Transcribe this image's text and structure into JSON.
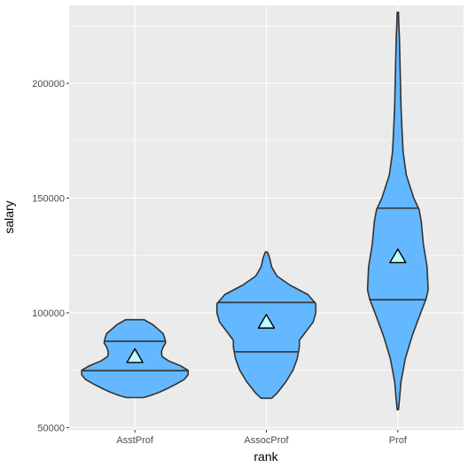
{
  "chart_data": {
    "type": "violin",
    "xlabel": "rank",
    "ylabel": "salary",
    "ylim": [
      49000,
      234000
    ],
    "y_ticks": [
      50000,
      100000,
      150000,
      200000
    ],
    "y_tick_labels": [
      "50000",
      "100000",
      "150000",
      "200000"
    ],
    "categories": [
      "AsstProf",
      "AssocProf",
      "Prof"
    ],
    "grid": true,
    "colors": {
      "panel": "#ebebeb",
      "grid": "#ffffff",
      "fill": "#63b8ff",
      "outline": "#333333",
      "mean_marker_fill": "#bfffff"
    },
    "violins": [
      {
        "category": "AsstProf",
        "q25": 74800,
        "q75": 87600,
        "mean": 80800,
        "profile": [
          [
            63100,
            0.16
          ],
          [
            64000,
            0.3
          ],
          [
            65500,
            0.47
          ],
          [
            67000,
            0.61
          ],
          [
            69000,
            0.78
          ],
          [
            71000,
            0.93
          ],
          [
            73000,
            1.0
          ],
          [
            75000,
            1.0
          ],
          [
            77000,
            0.85
          ],
          [
            79000,
            0.64
          ],
          [
            81000,
            0.51
          ],
          [
            83000,
            0.5
          ],
          [
            85000,
            0.53
          ],
          [
            87000,
            0.58
          ],
          [
            89000,
            0.56
          ],
          [
            91000,
            0.53
          ],
          [
            93000,
            0.43
          ],
          [
            95000,
            0.33
          ],
          [
            96500,
            0.21
          ],
          [
            97000,
            0.18
          ]
        ]
      },
      {
        "category": "AssocProf",
        "q25": 83000,
        "q75": 104500,
        "mean": 95800,
        "profile": [
          [
            62800,
            0.1
          ],
          [
            65000,
            0.2
          ],
          [
            70000,
            0.37
          ],
          [
            75000,
            0.5
          ],
          [
            80000,
            0.58
          ],
          [
            85000,
            0.62
          ],
          [
            88000,
            0.62
          ],
          [
            92000,
            0.75
          ],
          [
            96000,
            0.88
          ],
          [
            100000,
            0.93
          ],
          [
            104000,
            0.93
          ],
          [
            108000,
            0.78
          ],
          [
            112000,
            0.45
          ],
          [
            116000,
            0.2
          ],
          [
            120000,
            0.1
          ],
          [
            124000,
            0.06
          ],
          [
            126500,
            0.02
          ]
        ]
      },
      {
        "category": "Prof",
        "q25": 105700,
        "q75": 145600,
        "mean": 124300,
        "profile": [
          [
            57800,
            0.012
          ],
          [
            62000,
            0.03
          ],
          [
            70000,
            0.06
          ],
          [
            80000,
            0.14
          ],
          [
            90000,
            0.27
          ],
          [
            100000,
            0.43
          ],
          [
            106000,
            0.53
          ],
          [
            110000,
            0.57
          ],
          [
            120000,
            0.55
          ],
          [
            130000,
            0.48
          ],
          [
            140000,
            0.44
          ],
          [
            145000,
            0.4
          ],
          [
            150000,
            0.3
          ],
          [
            155000,
            0.23
          ],
          [
            160000,
            0.16
          ],
          [
            170000,
            0.1
          ],
          [
            180000,
            0.078
          ],
          [
            190000,
            0.06
          ],
          [
            200000,
            0.05
          ],
          [
            210000,
            0.04
          ],
          [
            220000,
            0.03
          ],
          [
            225000,
            0.02
          ],
          [
            231000,
            0.012
          ]
        ]
      }
    ]
  }
}
